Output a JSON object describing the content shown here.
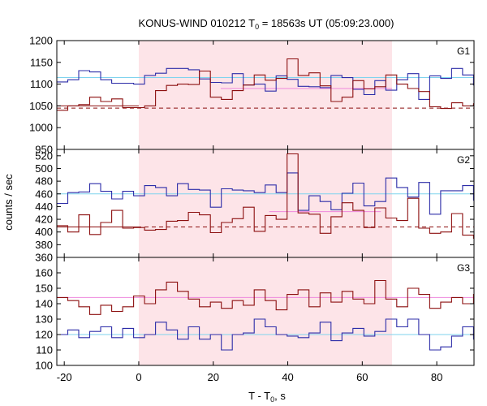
{
  "chart_data": {
    "type": "line",
    "title": "KONUS-WIND 010212 T",
    "title_sub": "0",
    "title_rest": " = 18563s UT (05:09:23.000)",
    "xlabel": "T - T",
    "xlabel_sub": "0",
    "xlabel_rest": ", s",
    "ylabel": "counts / sec",
    "xlim": [
      -22,
      90
    ],
    "xticks": [
      -20,
      0,
      20,
      40,
      60,
      80
    ],
    "xtick_labels": [
      "-20",
      "0",
      "20",
      "40",
      "60",
      "80"
    ],
    "highlight_interval": [
      0,
      68
    ],
    "colors": {
      "highlight": "#fde4e8",
      "series_blue": "#2c2ca8",
      "series_red": "#8c0f0f",
      "background_blue": "#7fd3ee",
      "background_pink": "#ee88dd",
      "background_red_dashed": "#8c0f0f"
    },
    "panels": [
      {
        "label": "G1",
        "ylim": [
          950,
          1200
        ],
        "yticks": [
          950,
          1000,
          1050,
          1100,
          1150,
          1200
        ],
        "ytick_labels": [
          "950",
          "1000",
          "1050",
          "1100",
          "1150",
          "1200"
        ],
        "bin_start": -22,
        "bin_width": 2.944,
        "series": [
          {
            "color": "blue",
            "values": [
              1105,
              1110,
              1131,
              1128,
              1110,
              1102,
              1102,
              1100,
              1120,
              1125,
              1136,
              1136,
              1133,
              1112,
              1104,
              1103,
              1124,
              1098,
              1100,
              1084,
              1119,
              1111,
              1095,
              1094,
              1092,
              1120,
              1115,
              1088,
              1076,
              1108,
              1086,
              1110,
              1124,
              1065,
              1119,
              1113,
              1136,
              1121,
              1098,
              1105
            ]
          },
          {
            "color": "red",
            "values": [
              1040,
              1050,
              1053,
              1070,
              1060,
              1066,
              1046,
              1046,
              1050,
              1085,
              1097,
              1100,
              1099,
              1130,
              1070,
              1065,
              1085,
              1098,
              1121,
              1109,
              1113,
              1158,
              1120,
              1126,
              1096,
              1060,
              1070,
              1108,
              1089,
              1094,
              1121,
              1100,
              1090,
              1083,
              1048,
              1044,
              1057,
              1050,
              1055,
              1058
            ]
          }
        ],
        "background_lines": [
          {
            "color": "cyan",
            "style": "solid",
            "value": 1115,
            "x_range": [
              -22,
              90
            ]
          },
          {
            "color": "pink",
            "style": "solid",
            "value": 1090,
            "x_range": [
              22,
              68
            ]
          },
          {
            "color": "red",
            "style": "dashed",
            "value": 1045,
            "x_range": [
              -22,
              90
            ]
          },
          {
            "color": "red",
            "style": "solid",
            "value": 1050,
            "x_range": [
              -22,
              0
            ]
          }
        ]
      },
      {
        "label": "G2",
        "ylim": [
          360,
          530
        ],
        "yticks": [
          360,
          380,
          400,
          420,
          440,
          460,
          480,
          500,
          520
        ],
        "ytick_labels": [
          "360",
          "380",
          "400",
          "420",
          "440",
          "460",
          "480",
          "500",
          "520"
        ],
        "bin_start": -22,
        "bin_width": 2.944,
        "series": [
          {
            "color": "blue",
            "values": [
              445,
              462,
              463,
              476,
              464,
              452,
              464,
              457,
              473,
              470,
              457,
              476,
              467,
              466,
              439,
              468,
              466,
              465,
              462,
              474,
              462,
              493,
              434,
              457,
              448,
              435,
              461,
              477,
              441,
              448,
              485,
              470,
              455,
              478,
              428,
              465,
              465,
              473,
              450,
              447
            ]
          },
          {
            "color": "red",
            "values": [
              410,
              400,
              427,
              396,
              415,
              434,
              406,
              407,
              403,
              404,
              417,
              418,
              431,
              427,
              399,
              415,
              421,
              439,
              401,
              426,
              420,
              523,
              430,
              428,
              398,
              424,
              446,
              434,
              407,
              438,
              422,
              418,
              453,
              406,
              398,
              400,
              429,
              395,
              390,
              398
            ]
          }
        ],
        "background_lines": [
          {
            "color": "cyan",
            "style": "solid",
            "value": 460,
            "x_range": [
              -22,
              90
            ]
          },
          {
            "color": "pink",
            "style": "solid",
            "value": 432,
            "x_range": [
              35,
              65
            ]
          },
          {
            "color": "red",
            "style": "dashed",
            "value": 408,
            "x_range": [
              -22,
              90
            ]
          },
          {
            "color": "red",
            "style": "solid",
            "value": 408,
            "x_range": [
              -22,
              0
            ]
          }
        ]
      },
      {
        "label": "G3",
        "ylim": [
          100,
          170
        ],
        "yticks": [
          100,
          110,
          120,
          130,
          140,
          150,
          160
        ],
        "ytick_labels": [
          "100",
          "110",
          "120",
          "130",
          "140",
          "150",
          "160"
        ],
        "bin_start": -22,
        "bin_width": 2.944,
        "series": [
          {
            "color": "red",
            "values": [
              144,
              142,
              138,
              133,
              139,
              135,
              138,
              145,
              140,
              149,
              154,
              148,
              143,
              138,
              141,
              137,
              142,
              139,
              149,
              142,
              136,
              146,
              149,
              138,
              147,
              141,
              148,
              143,
              140,
              155,
              143,
              138,
              150,
              146,
              137,
              141,
              144,
              140,
              146,
              142
            ]
          },
          {
            "color": "blue",
            "values": [
              120,
              123,
              118,
              122,
              125,
              118,
              124,
              118,
              120,
              128,
              123,
              117,
              125,
              117,
              120,
              110,
              120,
              121,
              130,
              125,
              120,
              119,
              118,
              121,
              128,
              116,
              121,
              124,
              119,
              122,
              130,
              125,
              130,
              120,
              110,
              112,
              119,
              125,
              117,
              122
            ]
          }
        ],
        "background_lines": [
          {
            "color": "cyan",
            "style": "solid",
            "value": 120,
            "x_range": [
              -22,
              90
            ]
          },
          {
            "color": "pink",
            "style": "solid",
            "value": 144,
            "x_range": [
              -22,
              90
            ]
          }
        ]
      }
    ]
  }
}
